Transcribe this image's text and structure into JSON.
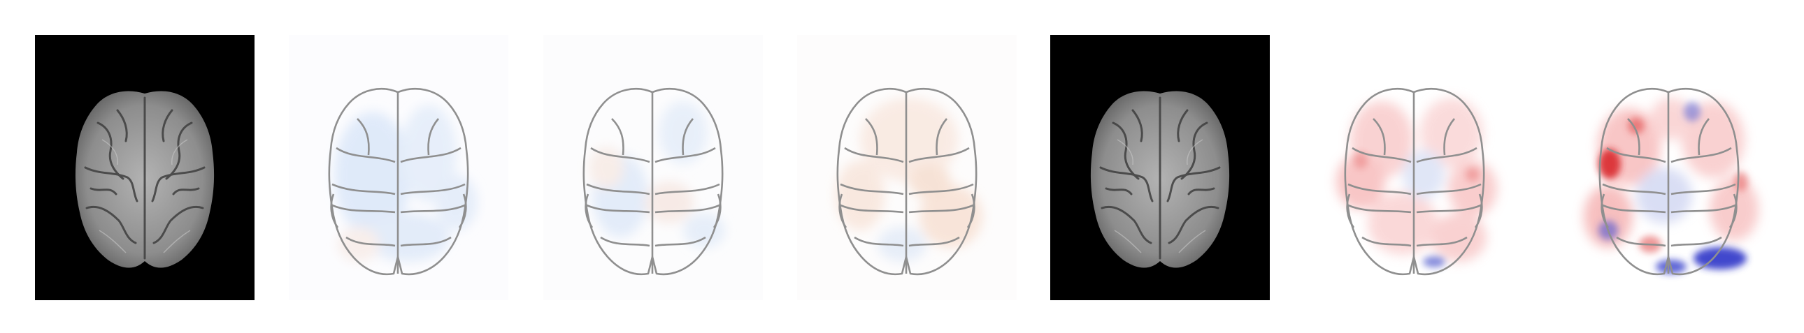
{
  "figure": {
    "panels": [
      {
        "kind": "anatomical-mri",
        "background": "#000000"
      },
      {
        "kind": "attribution-map",
        "colormap": "bwr",
        "strength": "weak",
        "dominant": "blue"
      },
      {
        "kind": "attribution-map",
        "colormap": "bwr",
        "strength": "weak",
        "dominant": "mixed"
      },
      {
        "kind": "attribution-map",
        "colormap": "bwr",
        "strength": "weak",
        "dominant": "red"
      },
      {
        "kind": "anatomical-mri",
        "background": "#000000"
      },
      {
        "kind": "attribution-map",
        "colormap": "bwr",
        "strength": "moderate",
        "dominant": "red"
      },
      {
        "kind": "attribution-map",
        "colormap": "bwr",
        "strength": "strong",
        "dominant": "red-blue"
      }
    ],
    "colors": {
      "positive": "#e8262a",
      "negative": "#1a22c8",
      "outline": "#8f8f8f",
      "brain_tissue": "#9a9a9a"
    }
  }
}
